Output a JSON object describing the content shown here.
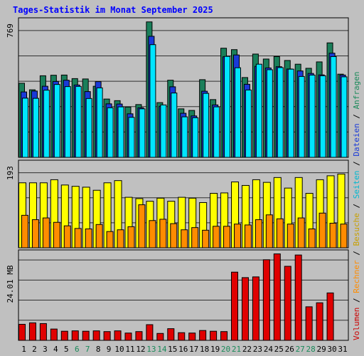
{
  "title": "Tages-Statistik im Monat September 2025",
  "chart_data": [
    {
      "type": "bar",
      "panel": "top",
      "categories": [
        "1",
        "2",
        "3",
        "4",
        "5",
        "6",
        "7",
        "8",
        "9",
        "10",
        "11",
        "12",
        "13",
        "14",
        "15",
        "16",
        "17",
        "18",
        "19",
        "20",
        "21",
        "22",
        "23",
        "24",
        "25",
        "26",
        "27",
        "28",
        "29",
        "30",
        "31"
      ],
      "ylabel_max": "769",
      "ylim": [
        0,
        769
      ],
      "grid": true,
      "series": [
        {
          "name": "Anfragen",
          "color": "#1a7f5a",
          "values": [
            417,
            380,
            459,
            462,
            463,
            443,
            441,
            400,
            328,
            319,
            283,
            297,
            762,
            308,
            434,
            273,
            264,
            437,
            325,
            614,
            606,
            449,
            581,
            553,
            567,
            545,
            524,
            501,
            537,
            644,
            468
          ]
        },
        {
          "name": "Dateien",
          "color": "#1a3ad8",
          "values": [
            368,
            373,
            400,
            427,
            434,
            407,
            370,
            426,
            301,
            300,
            245,
            279,
            681,
            287,
            397,
            248,
            233,
            372,
            295,
            566,
            576,
            411,
            512,
            503,
            510,
            497,
            486,
            472,
            464,
            586,
            463
          ]
        },
        {
          "name": "Seiten",
          "color": "#00e5ff",
          "values": [
            333,
            332,
            378,
            410,
            398,
            399,
            331,
            391,
            279,
            284,
            225,
            273,
            634,
            295,
            362,
            228,
            223,
            360,
            284,
            568,
            504,
            379,
            524,
            493,
            505,
            496,
            455,
            463,
            459,
            567,
            453
          ]
        }
      ]
    },
    {
      "type": "bar",
      "panel": "middle",
      "categories": [
        "1",
        "2",
        "3",
        "4",
        "5",
        "6",
        "7",
        "8",
        "9",
        "10",
        "11",
        "12",
        "13",
        "14",
        "15",
        "16",
        "17",
        "18",
        "19",
        "20",
        "21",
        "22",
        "23",
        "24",
        "25",
        "26",
        "27",
        "28",
        "29",
        "30",
        "31"
      ],
      "ylabel_max": "193",
      "ylim": [
        0,
        193
      ],
      "grid": true,
      "series": [
        {
          "name": "Besuche",
          "color": "#ffff00",
          "values": [
            148,
            148,
            148,
            155,
            143,
            140,
            138,
            131,
            148,
            153,
            115,
            112,
            106,
            113,
            106,
            115,
            113,
            103,
            124,
            125,
            150,
            142,
            155,
            149,
            160,
            136,
            160,
            124,
            155,
            164,
            168
          ]
        },
        {
          "name": "Rechner",
          "color": "#ff8c00",
          "values": [
            74,
            64,
            68,
            58,
            50,
            44,
            43,
            53,
            37,
            41,
            48,
            98,
            62,
            65,
            55,
            41,
            46,
            40,
            49,
            49,
            54,
            52,
            64,
            75,
            66,
            54,
            68,
            43,
            79,
            56,
            54
          ]
        }
      ]
    },
    {
      "type": "bar",
      "panel": "bottom",
      "categories": [
        "1",
        "2",
        "3",
        "4",
        "5",
        "6",
        "7",
        "8",
        "9",
        "10",
        "11",
        "12",
        "13",
        "14",
        "15",
        "16",
        "17",
        "18",
        "19",
        "20",
        "21",
        "22",
        "23",
        "24",
        "25",
        "26",
        "27",
        "28",
        "29",
        "30",
        "31"
      ],
      "ylabel_max": "24.01 MB",
      "ylim": [
        0,
        24.01
      ],
      "grid": true,
      "series": [
        {
          "name": "Volumen",
          "color": "#e00000",
          "values": [
            4.4,
            4.8,
            4.6,
            3.1,
            2.5,
            2.6,
            2.5,
            2.6,
            2.4,
            2.6,
            2.0,
            2.4,
            4.3,
            1.9,
            3.2,
            2.1,
            2.0,
            2.7,
            2.5,
            2.4,
            18.7,
            17.2,
            17.4,
            22.1,
            23.7,
            20.3,
            23.4,
            9.2,
            10.3,
            13.0,
            0
          ]
        }
      ]
    }
  ],
  "x_axis": {
    "labels": [
      "1",
      "2",
      "3",
      "4",
      "5",
      "6",
      "7",
      "8",
      "9",
      "10",
      "11",
      "12",
      "13",
      "14",
      "15",
      "16",
      "17",
      "18",
      "19",
      "20",
      "21",
      "22",
      "23",
      "24",
      "25",
      "26",
      "27",
      "28",
      "29",
      "30",
      "31"
    ],
    "weekend_days": [
      "6",
      "7",
      "13",
      "14",
      "20",
      "21",
      "27",
      "28"
    ],
    "weekday_color": "#000000",
    "weekend_color": "#1a8a5a"
  },
  "legend": {
    "items": [
      {
        "label": "Volumen",
        "color": "#cc0000"
      },
      {
        "label": " / ",
        "color": "#000000"
      },
      {
        "label": "Rechner",
        "color": "#ff8c00"
      },
      {
        "label": " / ",
        "color": "#000000"
      },
      {
        "label": "Besuche",
        "color": "#c8a000"
      },
      {
        "label": " / ",
        "color": "#000000"
      },
      {
        "label": "Seiten",
        "color": "#00b8d0"
      },
      {
        "label": " / ",
        "color": "#000000"
      },
      {
        "label": "Dateien",
        "color": "#1a3ad8"
      },
      {
        "label": " / ",
        "color": "#000000"
      },
      {
        "label": "Anfragen",
        "color": "#1a8a5a"
      }
    ]
  },
  "colors": {
    "background": "#c0c0c0",
    "title": "#0000ff",
    "grid": "#000000"
  }
}
